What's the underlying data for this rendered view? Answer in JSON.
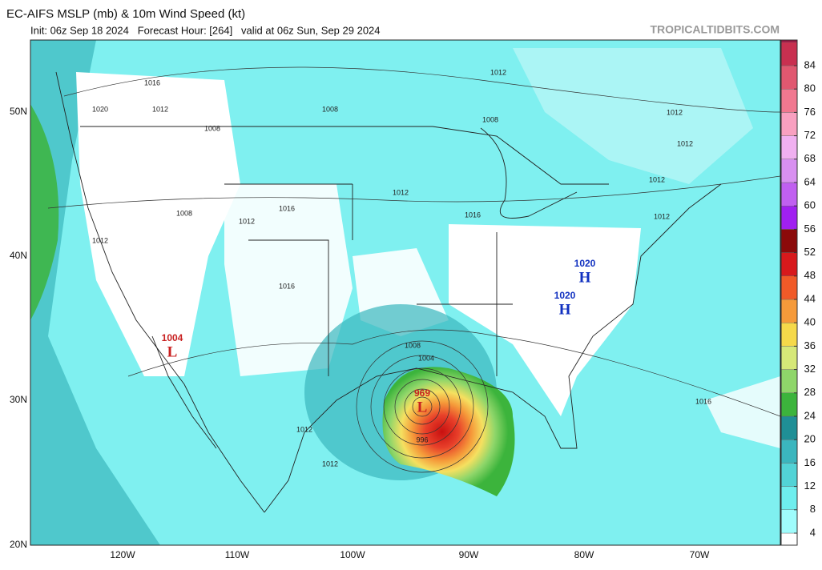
{
  "header": {
    "title": "EC-AIFS MSLP (mb) & 10m Wind Speed (kt)",
    "subtitle": "Init: 06z Sep 18 2024   Forecast Hour: [264]   valid at 06z Sun, Sep 29 2024",
    "source": "TROPICALTIDBITS.COM"
  },
  "map": {
    "lat_labels": [
      "50N",
      "40N",
      "30N",
      "20N"
    ],
    "lon_labels": [
      "120W",
      "110W",
      "100W",
      "90W",
      "80W",
      "70W"
    ],
    "centers": [
      {
        "letter": "H",
        "value": 1020
      },
      {
        "letter": "H",
        "value": 1020
      },
      {
        "letter": "L",
        "value": 1004
      },
      {
        "letter": "L",
        "value": 969
      }
    ],
    "isobar_labels": [
      1016,
      1020,
      1012,
      1008,
      1008,
      1012,
      1008,
      1012,
      1016,
      1012,
      1012,
      1008,
      1012,
      1012,
      1016,
      1012,
      1012,
      1004,
      1008,
      1016,
      1016,
      996,
      1012,
      1012
    ]
  },
  "colorbar": {
    "ticks": [
      4,
      8,
      12,
      16,
      20,
      24,
      28,
      32,
      36,
      40,
      44,
      48,
      52,
      56,
      60,
      64,
      68,
      72,
      76,
      80,
      84
    ],
    "colors": [
      "#ffffff",
      "#9ffcfc",
      "#6eeeee",
      "#52d3d6",
      "#3bb6be",
      "#1f8f96",
      "#3cb43c",
      "#8fd66a",
      "#d6e878",
      "#f5d94a",
      "#f59a3a",
      "#f05a28",
      "#d7191c",
      "#8b0a0a",
      "#a020f0",
      "#c060f0",
      "#d890f0",
      "#f0b0f0",
      "#f8a0c0",
      "#f07890",
      "#e05870",
      "#c83050",
      "#a01040"
    ]
  }
}
